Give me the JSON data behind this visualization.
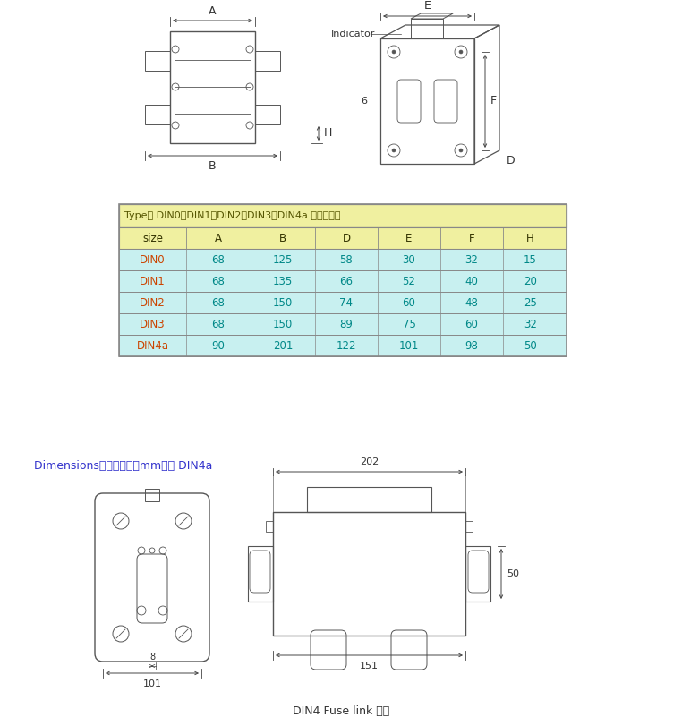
{
  "bg_color": "#ffffff",
  "table_header_bg": "#f0f0a0",
  "table_row_bg": "#c8f0f0",
  "table_border": "#aaaaaa",
  "table_title": "Type： DIN0、DIN1、DIN2、DIN3、DIN4a 尺寸示意图",
  "table_cols": [
    "size",
    "A",
    "B",
    "D",
    "E",
    "F",
    "H"
  ],
  "table_data": [
    [
      "DIN0",
      "68",
      "125",
      "58",
      "30",
      "32",
      "15"
    ],
    [
      "DIN1",
      "68",
      "135",
      "66",
      "52",
      "40",
      "20"
    ],
    [
      "DIN2",
      "68",
      "150",
      "74",
      "60",
      "48",
      "25"
    ],
    [
      "DIN3",
      "68",
      "150",
      "89",
      "75",
      "60",
      "32"
    ],
    [
      "DIN4a",
      "90",
      "201",
      "122",
      "101",
      "98",
      "50"
    ]
  ],
  "dim_label": "Dimensions安装尺寸图（mm）： DIN4a",
  "bottom_caption": "DIN4 Fuse link 熔体",
  "drawing_color": "#555555",
  "dim_text_color": "#333333",
  "label_color": "#3333cc"
}
